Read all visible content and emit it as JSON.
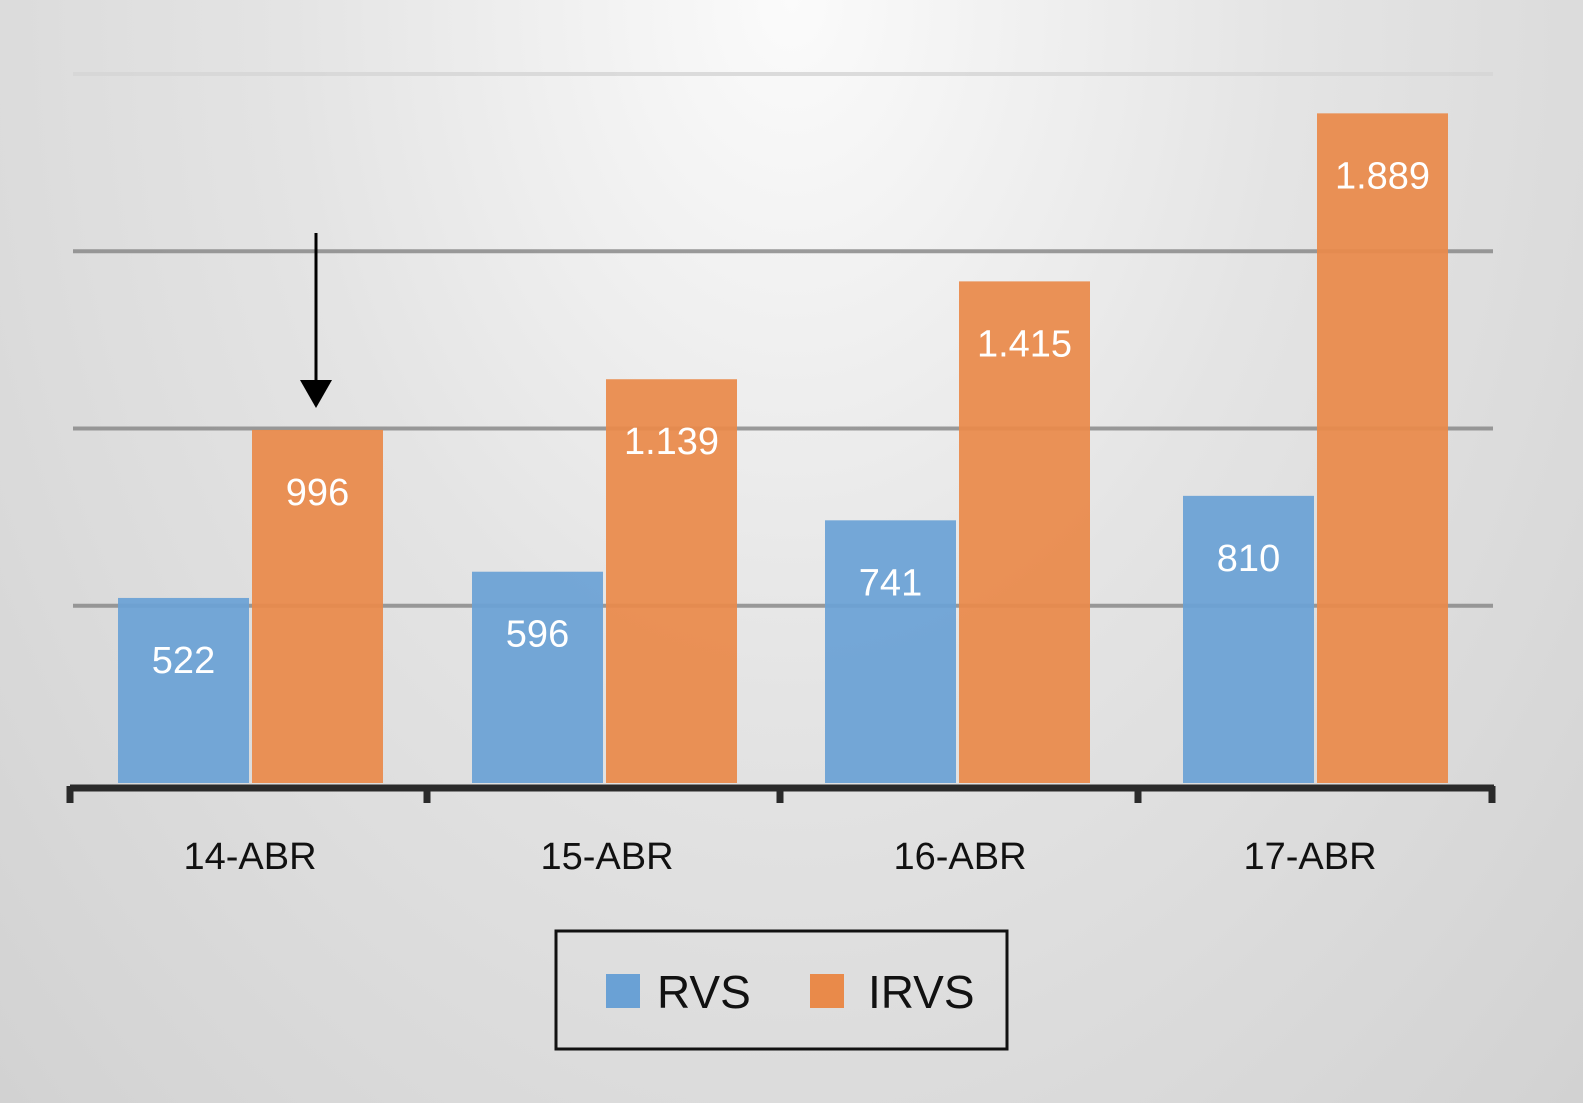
{
  "chart_data": {
    "type": "bar",
    "title": "",
    "xlabel": "",
    "ylabel": "",
    "categories": [
      "14-ABR",
      "15-ABR",
      "16-ABR",
      "17-ABR"
    ],
    "series": [
      {
        "name": "RVS",
        "values": [
          522,
          596,
          741,
          810
        ],
        "labels": [
          "522",
          "596",
          "741",
          "810"
        ],
        "color": "#6aa1d5"
      },
      {
        "name": "IRVS",
        "values": [
          996,
          1139,
          1415,
          1889
        ],
        "labels": [
          "996",
          "1.139",
          "1.415",
          "1.889"
        ],
        "color": "#e98a4a"
      }
    ],
    "ylim": [
      0,
      2000
    ],
    "gridlines": [
      500,
      1000,
      1500,
      2000
    ],
    "grid": true,
    "legend_position": "bottom-center",
    "annotation": {
      "type": "arrow-down",
      "category": "14-ABR",
      "series": "IRVS"
    }
  }
}
